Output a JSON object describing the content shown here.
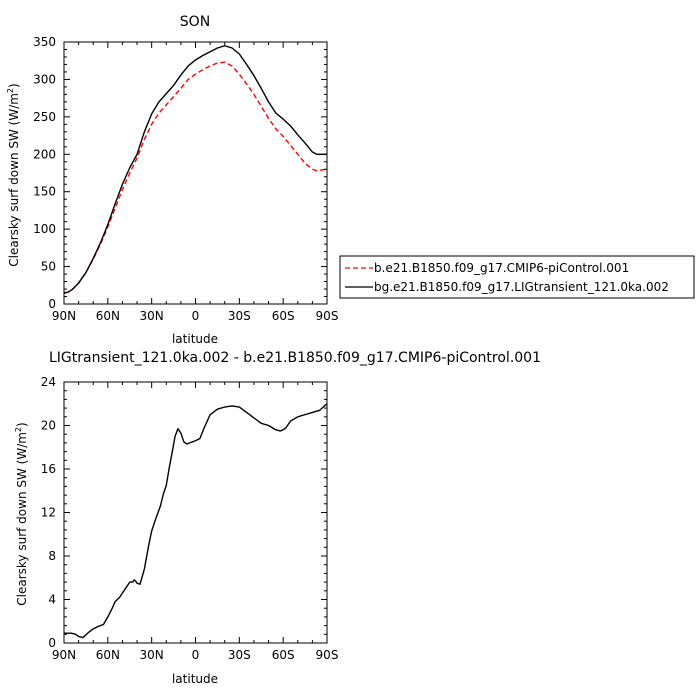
{
  "chart_data": [
    {
      "type": "line",
      "title": "SON",
      "xlabel": "latitude",
      "ylabel_main": "Clearsky surf down SW (W/m",
      "ylabel_sup": "2",
      "ylabel_close": ")",
      "xlim": [
        90,
        -90
      ],
      "ylim": [
        0,
        350
      ],
      "xticks": [
        90,
        60,
        30,
        0,
        -30,
        -60,
        -90
      ],
      "xtick_labels": [
        "90N",
        "60N",
        "30N",
        "0",
        "30S",
        "60S",
        "90S"
      ],
      "yticks": [
        0,
        50,
        100,
        150,
        200,
        250,
        300,
        350
      ],
      "ytick_labels": [
        "0",
        "50",
        "100",
        "150",
        "200",
        "250",
        "300",
        "350"
      ],
      "series": [
        {
          "name": "b.e21.B1850.f09_g17.CMIP6-piControl.001",
          "color": "#ff0000",
          "dash": "dashed",
          "x": [
            90,
            87,
            84,
            80,
            75,
            70,
            65,
            60,
            55,
            50,
            45,
            40,
            35,
            30,
            25,
            20,
            15,
            10,
            5,
            0,
            -5,
            -10,
            -15,
            -20,
            -25,
            -30,
            -35,
            -40,
            -45,
            -50,
            -55,
            -60,
            -65,
            -70,
            -75,
            -80,
            -83,
            -86,
            -90
          ],
          "y": [
            14,
            16,
            20,
            28,
            42,
            60,
            80,
            103,
            128,
            153,
            175,
            195,
            220,
            240,
            255,
            266,
            277,
            288,
            300,
            307,
            313,
            318,
            322,
            323,
            318,
            307,
            294,
            280,
            264,
            248,
            234,
            224,
            212,
            200,
            188,
            180,
            178,
            179,
            180
          ]
        },
        {
          "name": "bg.e21.B1850.f09_g17.LIGtransient_121.0ka.002",
          "color": "#000000",
          "dash": "solid",
          "x": [
            90,
            87,
            84,
            80,
            75,
            70,
            65,
            60,
            55,
            50,
            45,
            40,
            35,
            30,
            25,
            20,
            15,
            10,
            5,
            0,
            -5,
            -10,
            -15,
            -20,
            -25,
            -30,
            -35,
            -40,
            -45,
            -50,
            -55,
            -60,
            -65,
            -70,
            -75,
            -80,
            -83,
            -86,
            -90
          ],
          "y": [
            15,
            16,
            20,
            28,
            42,
            61,
            82,
            106,
            134,
            160,
            182,
            200,
            230,
            254,
            270,
            281,
            292,
            306,
            318,
            326,
            332,
            337,
            342,
            345,
            342,
            334,
            320,
            305,
            288,
            270,
            255,
            247,
            238,
            226,
            215,
            203,
            200,
            200,
            200
          ]
        }
      ]
    },
    {
      "type": "line",
      "title": "LIGtransient_121.0ka.002 - b.e21.B1850.f09_g17.CMIP6-piControl.001",
      "xlabel": "latitude",
      "ylabel_main": "Clearsky surf down SW (W/m",
      "ylabel_sup": "2",
      "ylabel_close": ")",
      "xlim": [
        90,
        -90
      ],
      "ylim": [
        0,
        24
      ],
      "xticks": [
        90,
        60,
        30,
        0,
        -30,
        -60,
        -90
      ],
      "xtick_labels": [
        "90N",
        "60N",
        "30N",
        "0",
        "30S",
        "60S",
        "90S"
      ],
      "yticks": [
        0,
        4,
        8,
        12,
        16,
        20,
        24
      ],
      "ytick_labels": [
        "0",
        "4",
        "8",
        "12",
        "16",
        "20",
        "24"
      ],
      "series": [
        {
          "color": "#000000",
          "dash": "solid",
          "x": [
            90,
            85,
            82,
            80,
            77,
            73,
            70,
            67,
            63,
            60,
            57,
            55,
            52,
            50,
            47,
            45,
            43,
            42,
            41,
            40,
            38,
            35,
            32,
            30,
            27,
            24,
            22,
            20,
            18,
            16,
            14,
            12,
            10,
            8,
            6,
            4,
            2,
            0,
            -3,
            -6,
            -10,
            -15,
            -20,
            -25,
            -30,
            -35,
            -40,
            -45,
            -50,
            -55,
            -58,
            -60,
            -62,
            -65,
            -70,
            -75,
            -80,
            -85,
            -90
          ],
          "y": [
            0.9,
            0.9,
            0.8,
            0.6,
            0.5,
            1.0,
            1.3,
            1.5,
            1.7,
            2.4,
            3.2,
            3.8,
            4.2,
            4.6,
            5.2,
            5.6,
            5.6,
            5.8,
            5.7,
            5.5,
            5.4,
            6.8,
            9.0,
            10.3,
            11.5,
            12.6,
            13.7,
            14.5,
            16.1,
            17.5,
            19.0,
            19.7,
            19.3,
            18.5,
            18.3,
            18.4,
            18.5,
            18.6,
            18.8,
            19.8,
            21.0,
            21.5,
            21.7,
            21.8,
            21.7,
            21.2,
            20.7,
            20.2,
            20.0,
            19.6,
            19.5,
            19.6,
            19.8,
            20.4,
            20.8,
            21.0,
            21.2,
            21.4,
            22.0
          ]
        }
      ]
    }
  ]
}
